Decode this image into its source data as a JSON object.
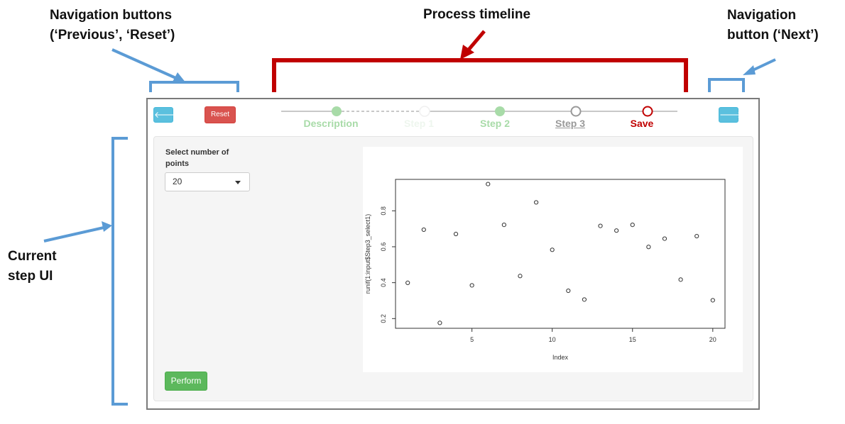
{
  "annotations": {
    "nav_left": {
      "line1": "Navigation buttons",
      "line2": "(‘Previous’, ‘Reset’)"
    },
    "process_timeline": "Process timeline",
    "nav_right": {
      "line1": "Navigation",
      "line2": "button (‘Next’)"
    },
    "current_step": {
      "line1": "Current",
      "line2": "step UI"
    }
  },
  "colors": {
    "annotation_blue": "#5b9bd5",
    "annotation_red": "#c00000",
    "timeline_done": "#a8dba8",
    "timeline_current": "#c00000",
    "timeline_pending": "#aaaaaa"
  },
  "app": {
    "prev_icon": "arrow-left-icon",
    "next_icon": "arrow-right-icon",
    "prev_glyph": "🡐",
    "next_glyph": "🡒",
    "reset_label": "Reset",
    "timeline": [
      {
        "label": "Description",
        "state": "done",
        "color": "#a8dba8"
      },
      {
        "label": "Step 1",
        "state": "skipped",
        "color": "#e6f3e6"
      },
      {
        "label": "Step 2",
        "state": "done",
        "color": "#a8dba8"
      },
      {
        "label": "Step 3",
        "state": "pending",
        "color": "#999999"
      },
      {
        "label": "Save",
        "state": "current",
        "color": "#c00000"
      }
    ],
    "select_label": "Select number of points",
    "select_value": "20",
    "perform_label": "Perform"
  },
  "chart_data": {
    "type": "scatter",
    "xlabel": "Index",
    "ylabel": "runif(1:input$Step3_select1)",
    "xlim": [
      0.24,
      20.76
    ],
    "ylim": [
      0.146,
      0.975
    ],
    "x_ticks": [
      5,
      10,
      15,
      20
    ],
    "y_ticks": [
      0.2,
      0.4,
      0.6,
      0.8
    ],
    "x_tick_labels": [
      "5",
      "10",
      "15",
      "20"
    ],
    "y_tick_labels": [
      "0.2",
      "0.4",
      "0.6",
      "0.8"
    ],
    "x": [
      1,
      2,
      3,
      4,
      5,
      6,
      7,
      8,
      9,
      10,
      11,
      12,
      13,
      14,
      15,
      16,
      17,
      18,
      19,
      20
    ],
    "y": [
      0.399,
      0.695,
      0.176,
      0.671,
      0.385,
      0.949,
      0.722,
      0.437,
      0.847,
      0.583,
      0.355,
      0.306,
      0.716,
      0.69,
      0.722,
      0.599,
      0.645,
      0.417,
      0.659,
      0.302
    ]
  }
}
